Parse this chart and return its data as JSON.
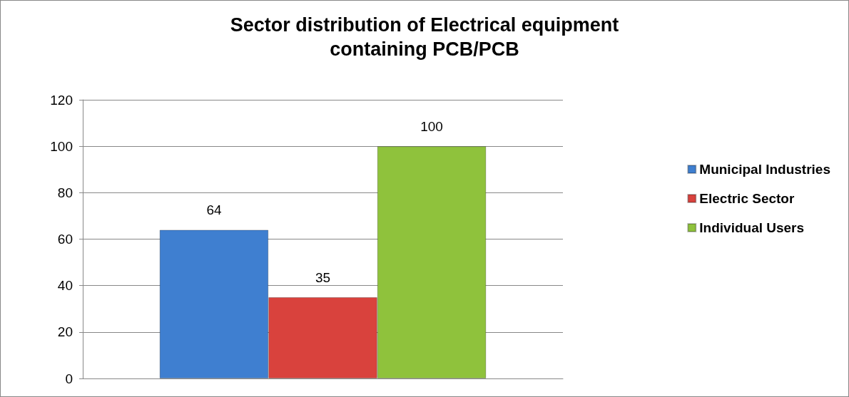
{
  "chart_data": {
    "type": "bar",
    "title": "Sector distribution of Electrical equipment\ncontaining PCB/PCB",
    "categories": [
      null
    ],
    "series": [
      {
        "name": "Municipal Industries",
        "color": "#3f7fd0",
        "values": [
          64
        ]
      },
      {
        "name": "Electric Sector",
        "color": "#d9423d",
        "values": [
          35
        ]
      },
      {
        "name": "Individual Users",
        "color": "#8fc23c",
        "values": [
          100
        ]
      }
    ],
    "ylim": [
      0,
      120
    ],
    "yticks": [
      0,
      20,
      40,
      60,
      80,
      100,
      120
    ],
    "grid": "y",
    "legend": "right",
    "data_labels": true
  }
}
